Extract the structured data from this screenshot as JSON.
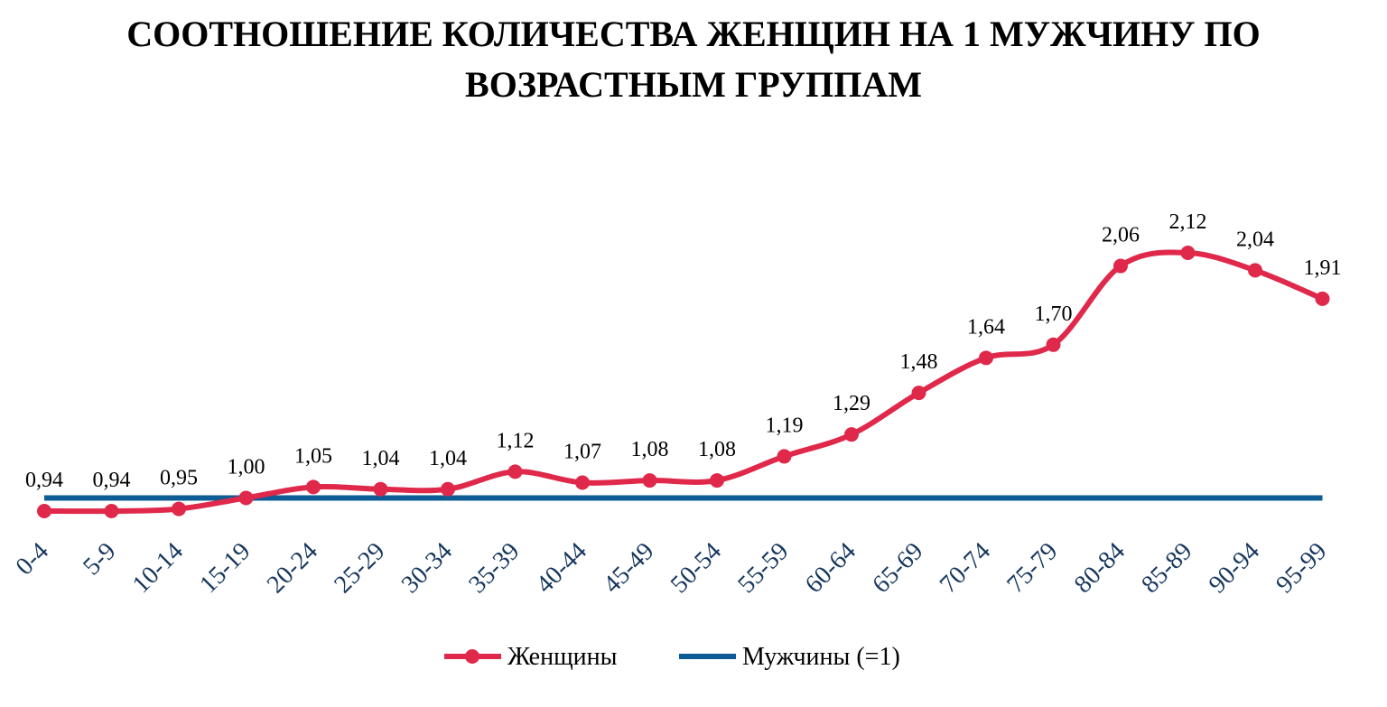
{
  "chart_data": {
    "type": "line",
    "title_lines": [
      "СООТНОШЕНИЕ КОЛИЧЕСТВА ЖЕНЩИН НА 1 МУЖЧИНУ ПО",
      "ВОЗРАСТНЫМ ГРУППАМ"
    ],
    "categories": [
      "0-4",
      "5-9",
      "10-14",
      "15-19",
      "20-24",
      "25-29",
      "30-34",
      "35-39",
      "40-44",
      "45-49",
      "50-54",
      "55-59",
      "60-64",
      "65-69",
      "70-74",
      "75-79",
      "80-84",
      "85-89",
      "90-94",
      "95-99"
    ],
    "series": [
      {
        "name": "Женщины",
        "color": "#e0284a",
        "values": [
          0.94,
          0.94,
          0.95,
          1.0,
          1.05,
          1.04,
          1.04,
          1.12,
          1.07,
          1.08,
          1.08,
          1.19,
          1.29,
          1.48,
          1.64,
          1.7,
          2.06,
          2.12,
          2.04,
          1.91
        ],
        "data_labels": [
          "0,94",
          "0,94",
          "0,95",
          "1,00",
          "1,05",
          "1,04",
          "1,04",
          "1,12",
          "1,07",
          "1,08",
          "1,08",
          "1,19",
          "1,29",
          "1,48",
          "1,64",
          "1,70",
          "2,06",
          "2,12",
          "2,04",
          "1,91"
        ],
        "markers": true,
        "smooth": true
      },
      {
        "name": "Мужчины (=1)",
        "color": "#0e5c96",
        "values": [
          1,
          1,
          1,
          1,
          1,
          1,
          1,
          1,
          1,
          1,
          1,
          1,
          1,
          1,
          1,
          1,
          1,
          1,
          1,
          1
        ],
        "markers": false
      }
    ],
    "ylim": [
      0.9,
      2.2
    ],
    "grid": false,
    "axis_tick_color": "#17375e",
    "legend_position": "bottom"
  }
}
